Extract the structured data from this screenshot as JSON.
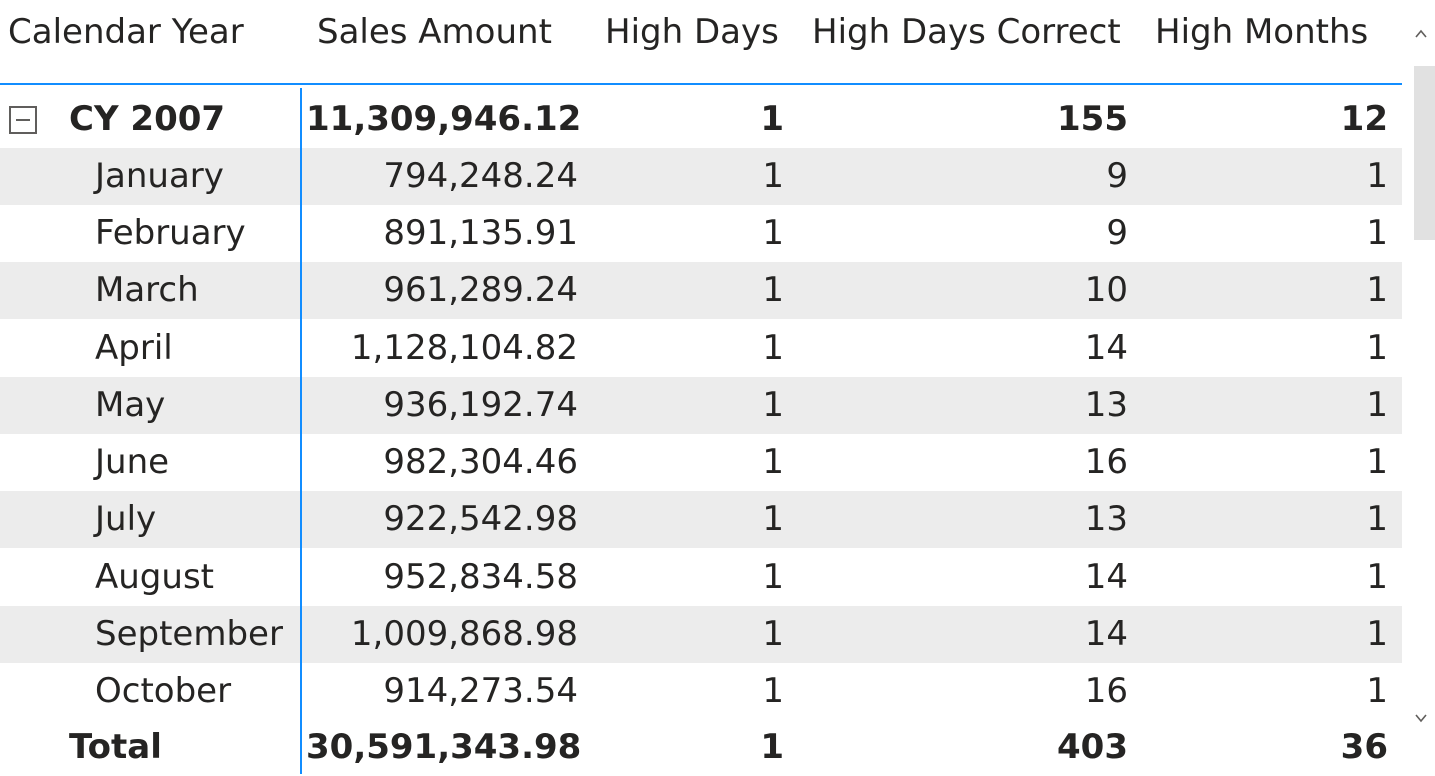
{
  "matrix": {
    "headers": {
      "calendar_year": "Calendar Year",
      "sales_amount": "Sales Amount",
      "high_days": "High Days",
      "high_days_correct": "High Days Correct",
      "high_months": "High Months"
    },
    "year_row": {
      "label": "CY 2007",
      "sales_amount": "11,309,946.12",
      "high_days": "1",
      "high_days_correct": "155",
      "high_months": "12",
      "expander_icon": "collapse-minus-icon"
    },
    "months": [
      {
        "label": "January",
        "sales_amount": "794,248.24",
        "high_days": "1",
        "high_days_correct": "9",
        "high_months": "1"
      },
      {
        "label": "February",
        "sales_amount": "891,135.91",
        "high_days": "1",
        "high_days_correct": "9",
        "high_months": "1"
      },
      {
        "label": "March",
        "sales_amount": "961,289.24",
        "high_days": "1",
        "high_days_correct": "10",
        "high_months": "1"
      },
      {
        "label": "April",
        "sales_amount": "1,128,104.82",
        "high_days": "1",
        "high_days_correct": "14",
        "high_months": "1"
      },
      {
        "label": "May",
        "sales_amount": "936,192.74",
        "high_days": "1",
        "high_days_correct": "13",
        "high_months": "1"
      },
      {
        "label": "June",
        "sales_amount": "982,304.46",
        "high_days": "1",
        "high_days_correct": "16",
        "high_months": "1"
      },
      {
        "label": "July",
        "sales_amount": "922,542.98",
        "high_days": "1",
        "high_days_correct": "13",
        "high_months": "1"
      },
      {
        "label": "August",
        "sales_amount": "952,834.58",
        "high_days": "1",
        "high_days_correct": "14",
        "high_months": "1"
      },
      {
        "label": "September",
        "sales_amount": "1,009,868.98",
        "high_days": "1",
        "high_days_correct": "14",
        "high_months": "1"
      },
      {
        "label": "October",
        "sales_amount": "914,273.54",
        "high_days": "1",
        "high_days_correct": "16",
        "high_months": "1"
      }
    ],
    "total_row": {
      "label": "Total",
      "sales_amount": "30,591,343.98",
      "high_days": "1",
      "high_days_correct": "403",
      "high_months": "36"
    }
  },
  "scrollbar": {
    "up_arrow": "^",
    "down_arrow": "v",
    "up_icon": "chevron-up-icon",
    "down_icon": "chevron-down-icon"
  },
  "colors": {
    "accent": "#118dff",
    "alt_row": "#ececec",
    "text": "#252423"
  }
}
